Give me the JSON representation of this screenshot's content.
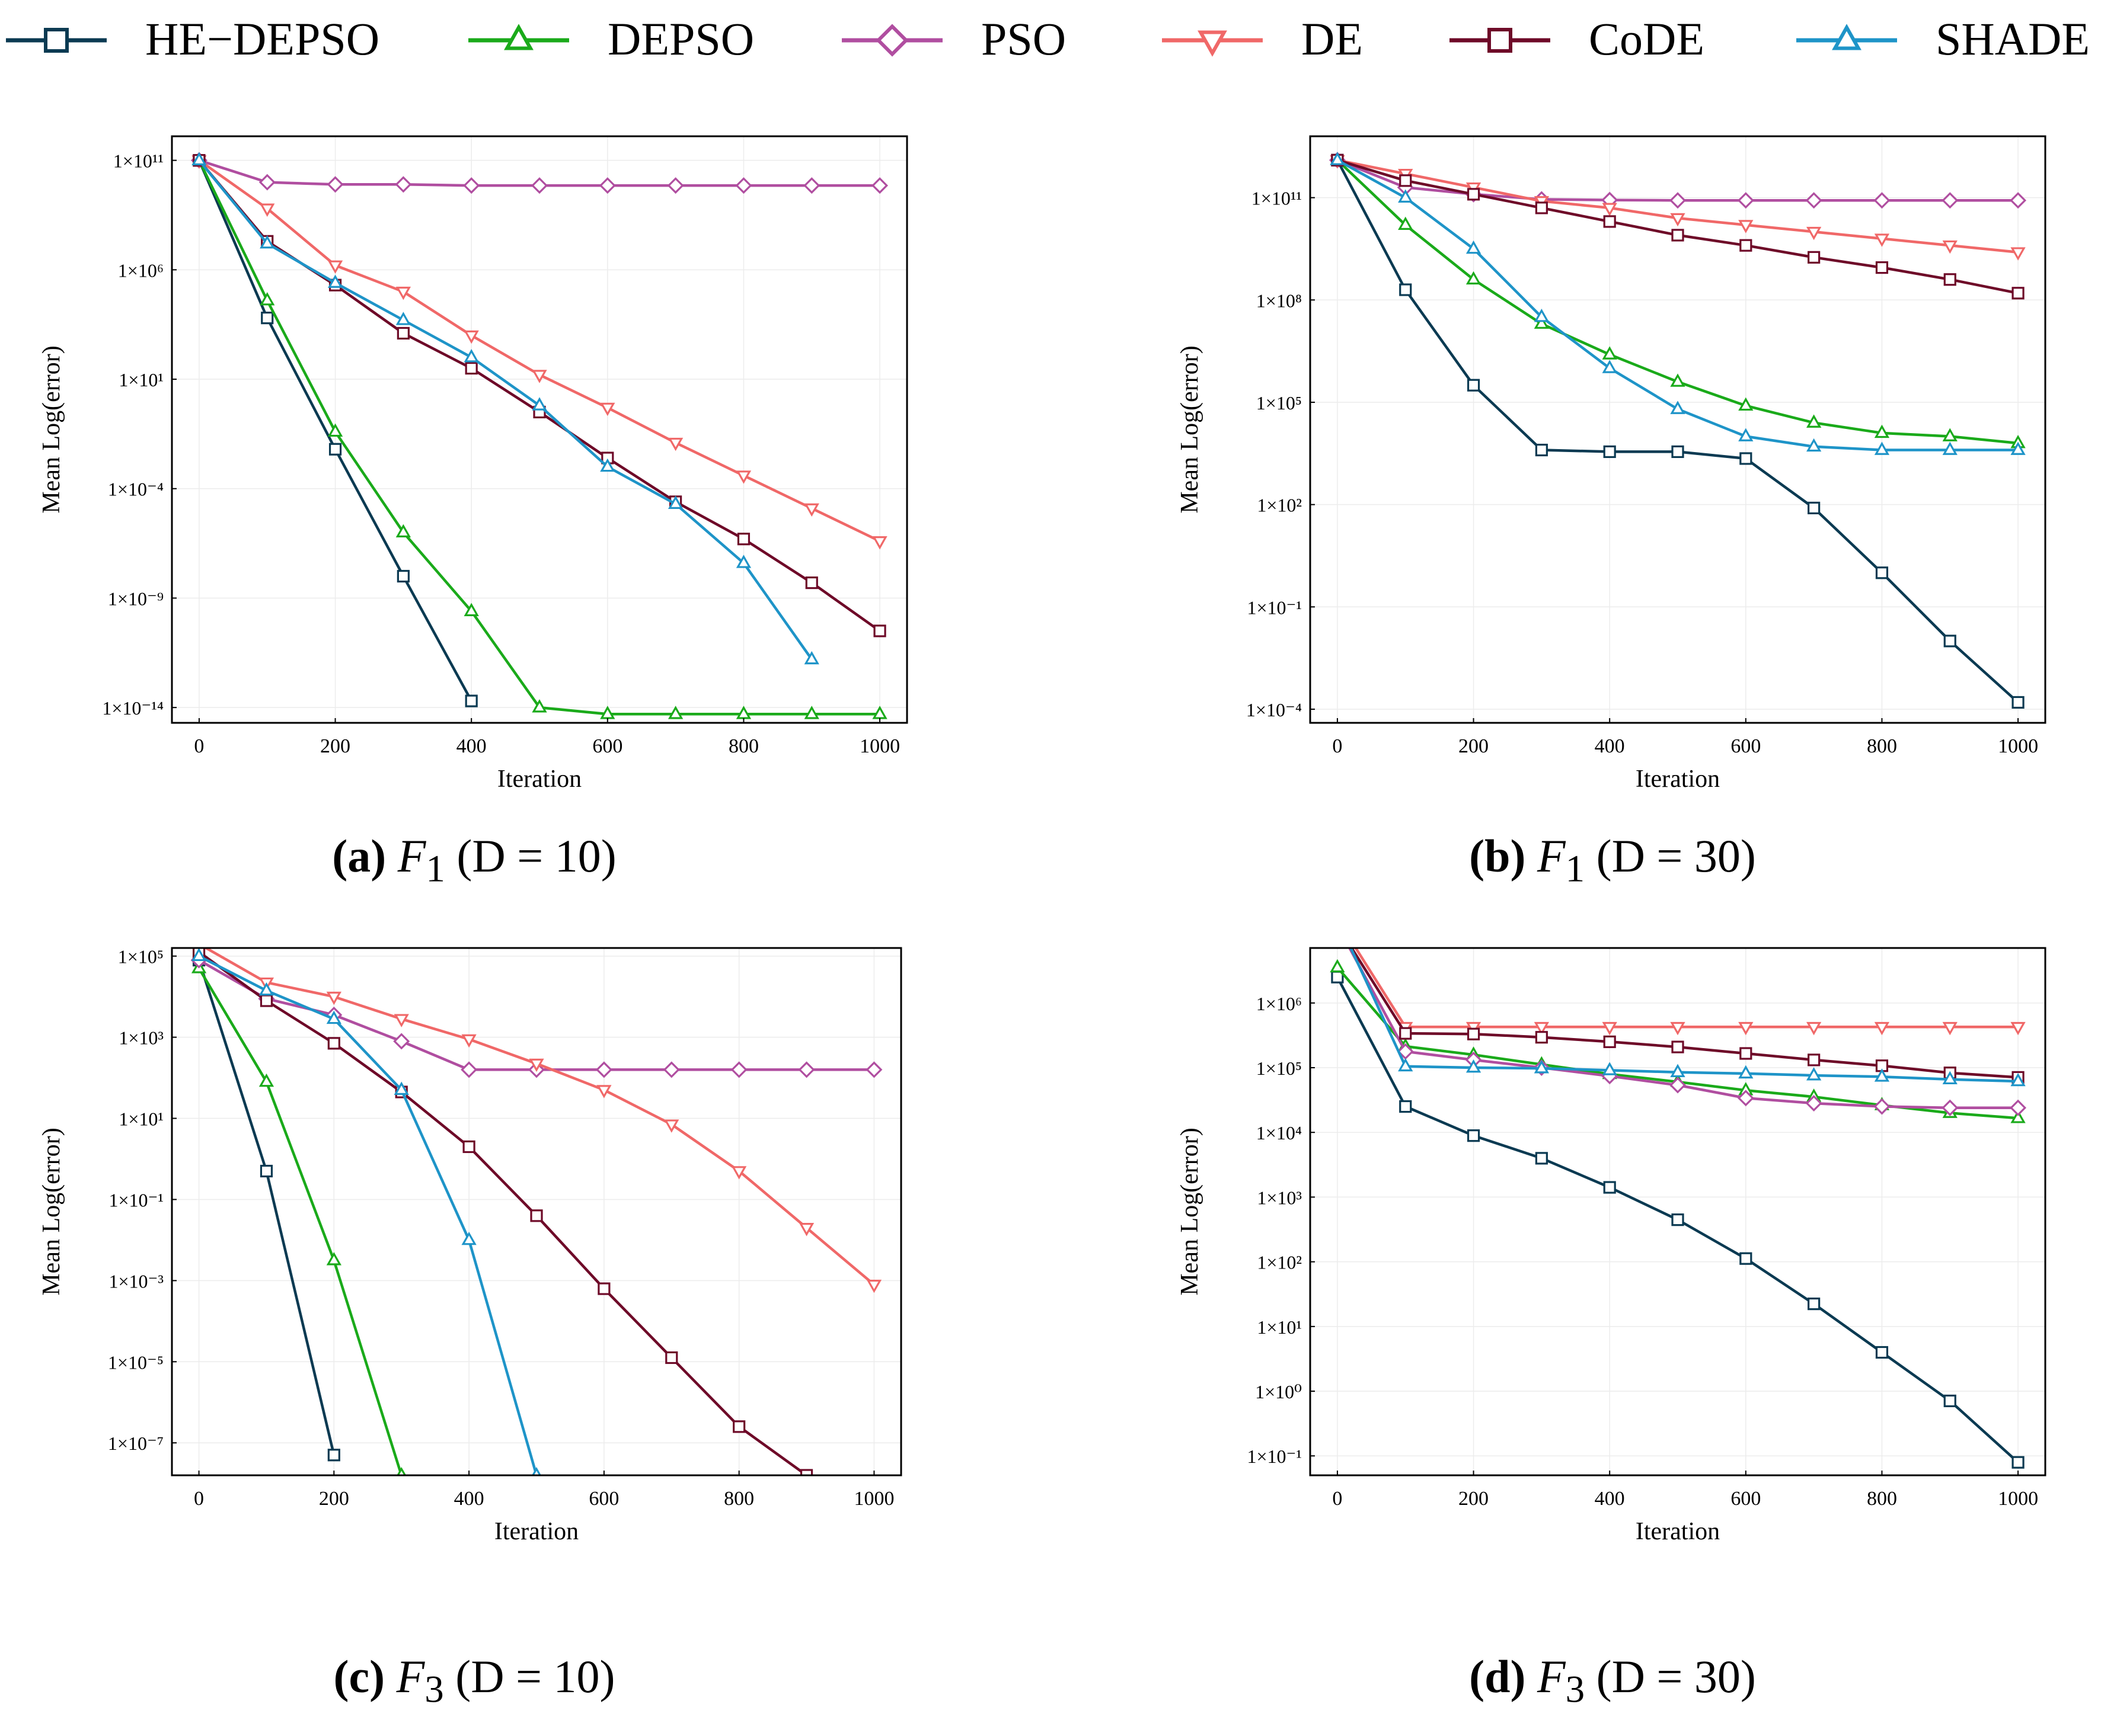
{
  "series_styles": [
    {
      "name": "HE−DEPSO",
      "color": "#0b3a52",
      "marker": "square"
    },
    {
      "name": "DEPSO",
      "color": "#1aaa1a",
      "marker": "triangle-up"
    },
    {
      "name": "PSO",
      "color": "#b04ea0",
      "marker": "diamond"
    },
    {
      "name": "DE",
      "color": "#f06868",
      "marker": "triangle-down"
    },
    {
      "name": "CoDE",
      "color": "#6e0a28",
      "marker": "square"
    },
    {
      "name": "SHADE",
      "color": "#1e94c8",
      "marker": "triangle-up"
    }
  ],
  "captions": [
    {
      "label": "(a)",
      "func": "F",
      "sub": "1",
      "rest": "(D = 10)"
    },
    {
      "label": "(b)",
      "func": "F",
      "sub": "1",
      "rest": "(D = 30)"
    },
    {
      "label": "(c)",
      "func": "F",
      "sub": "3",
      "rest": "(D = 10)"
    },
    {
      "label": "(d)",
      "func": "F",
      "sub": "3",
      "rest": "(D = 30)"
    }
  ],
  "chart_data": [
    {
      "type": "line",
      "title": "F1 (D = 10)",
      "xlabel": "Iteration",
      "ylabel": "Mean Log(error)",
      "yscale": "log",
      "xlim": [
        -40,
        1040
      ],
      "ylim_log10": [
        -14.7,
        12.1
      ],
      "xticks": [
        0,
        200,
        400,
        600,
        800,
        1000
      ],
      "yticks_exp": [
        11,
        6,
        1,
        -4,
        -9,
        -14
      ],
      "x": [
        0,
        100,
        200,
        300,
        400,
        500,
        600,
        700,
        800,
        900,
        1000
      ],
      "series_log10": [
        {
          "name": "HE−DEPSO",
          "values": [
            11,
            3.8,
            -2.2,
            -8.0,
            -13.7
          ]
        },
        {
          "name": "DEPSO",
          "values": [
            11,
            4.6,
            -1.4,
            -6.0,
            -9.6,
            -14.0,
            -14.3,
            -14.3,
            -14.3,
            -14.3,
            -14.3
          ]
        },
        {
          "name": "PSO",
          "values": [
            11,
            10.0,
            9.9,
            9.9,
            9.85,
            9.85,
            9.85,
            9.85,
            9.85,
            9.85,
            9.85
          ]
        },
        {
          "name": "DE",
          "values": [
            11,
            8.8,
            6.2,
            5.0,
            3.0,
            1.2,
            -0.3,
            -1.9,
            -3.4,
            -4.9,
            -6.4
          ]
        },
        {
          "name": "CoDE",
          "values": [
            11,
            7.3,
            5.3,
            3.1,
            1.5,
            -0.5,
            -2.6,
            -4.6,
            -6.3,
            -8.3,
            -10.5
          ]
        },
        {
          "name": "SHADE",
          "values": [
            11,
            7.2,
            5.4,
            3.7,
            2.0,
            -0.2,
            -3.0,
            -4.7,
            -7.4,
            -11.8
          ]
        }
      ]
    },
    {
      "type": "line",
      "title": "F1 (D = 30)",
      "xlabel": "Iteration",
      "ylabel": "Mean Log(error)",
      "yscale": "log",
      "xlim": [
        -40,
        1040
      ],
      "ylim_log10": [
        -4.4,
        12.8
      ],
      "xticks": [
        0,
        200,
        400,
        600,
        800,
        1000
      ],
      "yticks_exp": [
        11,
        8,
        5,
        2,
        -1,
        -4
      ],
      "x": [
        0,
        100,
        200,
        300,
        400,
        500,
        600,
        700,
        800,
        900,
        1000
      ],
      "series_log10": [
        {
          "name": "HE−DEPSO",
          "values": [
            12.1,
            8.3,
            5.5,
            3.6,
            3.55,
            3.55,
            3.35,
            1.9,
            0.0,
            -2.0,
            -3.8
          ]
        },
        {
          "name": "DEPSO",
          "values": [
            12.1,
            10.2,
            8.6,
            7.3,
            6.4,
            5.6,
            4.9,
            4.4,
            4.1,
            4.0,
            3.8
          ]
        },
        {
          "name": "PSO",
          "values": [
            12.1,
            11.3,
            11.1,
            10.95,
            10.93,
            10.92,
            10.92,
            10.92,
            10.92,
            10.92,
            10.92
          ]
        },
        {
          "name": "DE",
          "values": [
            12.1,
            11.7,
            11.3,
            10.9,
            10.7,
            10.4,
            10.2,
            10.0,
            9.8,
            9.6,
            9.4
          ]
        },
        {
          "name": "CoDE",
          "values": [
            12.1,
            11.5,
            11.1,
            10.7,
            10.3,
            9.9,
            9.6,
            9.25,
            8.95,
            8.6,
            8.2
          ]
        },
        {
          "name": "SHADE",
          "values": [
            12.1,
            11.0,
            9.5,
            7.5,
            6.0,
            4.8,
            4.0,
            3.7,
            3.6,
            3.6,
            3.6
          ]
        }
      ]
    },
    {
      "type": "line",
      "title": "F3 (D = 10)",
      "xlabel": "Iteration",
      "ylabel": "Mean Log(error)",
      "yscale": "log",
      "xlim": [
        -40,
        1040
      ],
      "ylim_log10": [
        -7.8,
        5.2
      ],
      "xticks": [
        0,
        200,
        400,
        600,
        800,
        1000
      ],
      "yticks_exp": [
        5,
        3,
        1,
        -1,
        -3,
        -5,
        -7
      ],
      "x": [
        0,
        100,
        200,
        300,
        400,
        500,
        600,
        700,
        800,
        900,
        1000
      ],
      "series_log10": [
        {
          "name": "HE−DEPSO",
          "values": [
            4.9,
            -0.3,
            -7.3
          ]
        },
        {
          "name": "DEPSO",
          "values": [
            4.7,
            1.9,
            -2.5,
            -7.8
          ]
        },
        {
          "name": "PSO",
          "values": [
            4.9,
            3.95,
            3.55,
            2.9,
            2.2,
            2.2,
            2.2,
            2.2,
            2.2,
            2.2,
            2.2
          ]
        },
        {
          "name": "DE",
          "values": [
            5.3,
            4.35,
            4.0,
            3.45,
            2.95,
            2.35,
            1.7,
            0.85,
            -0.3,
            -1.7,
            -3.1
          ]
        },
        {
          "name": "CoDE",
          "values": [
            5.1,
            3.9,
            2.85,
            1.65,
            0.3,
            -1.4,
            -3.2,
            -4.9,
            -6.6,
            -7.8
          ]
        },
        {
          "name": "SHADE",
          "values": [
            5.0,
            4.15,
            3.45,
            1.7,
            -2.0,
            -7.8
          ]
        }
      ]
    },
    {
      "type": "line",
      "title": "F3 (D = 30)",
      "xlabel": "Iteration",
      "ylabel": "Mean Log(error)",
      "yscale": "log",
      "xlim": [
        -40,
        1040
      ],
      "ylim_log10": [
        -1.3,
        6.85
      ],
      "xticks": [
        0,
        200,
        400,
        600,
        800,
        1000
      ],
      "yticks_exp": [
        6,
        5,
        4,
        3,
        2,
        1,
        0,
        -1
      ],
      "x": [
        0,
        100,
        200,
        300,
        400,
        500,
        600,
        700,
        800,
        900,
        1000
      ],
      "series_log10": [
        {
          "name": "HE−DEPSO",
          "values": [
            6.4,
            4.4,
            3.95,
            3.6,
            3.15,
            2.65,
            2.05,
            1.35,
            0.6,
            -0.15,
            -1.1
          ]
        },
        {
          "name": "DEPSO",
          "values": [
            6.55,
            5.33,
            5.2,
            5.05,
            4.9,
            4.78,
            4.65,
            4.55,
            4.42,
            4.3,
            4.22
          ]
        },
        {
          "name": "PSO",
          "values": [
            7.2,
            5.25,
            5.12,
            5.0,
            4.87,
            4.73,
            4.53,
            4.45,
            4.4,
            4.38,
            4.38
          ]
        },
        {
          "name": "DE",
          "values": [
            7.3,
            5.63,
            5.63,
            5.63,
            5.63,
            5.63,
            5.63,
            5.63,
            5.63,
            5.63,
            5.63
          ]
        },
        {
          "name": "CoDE",
          "values": [
            7.2,
            5.53,
            5.52,
            5.47,
            5.4,
            5.32,
            5.22,
            5.12,
            5.03,
            4.92,
            4.85
          ]
        },
        {
          "name": "SHADE",
          "values": [
            7.3,
            5.02,
            5.0,
            4.99,
            4.96,
            4.93,
            4.91,
            4.88,
            4.86,
            4.82,
            4.79
          ]
        }
      ]
    }
  ]
}
